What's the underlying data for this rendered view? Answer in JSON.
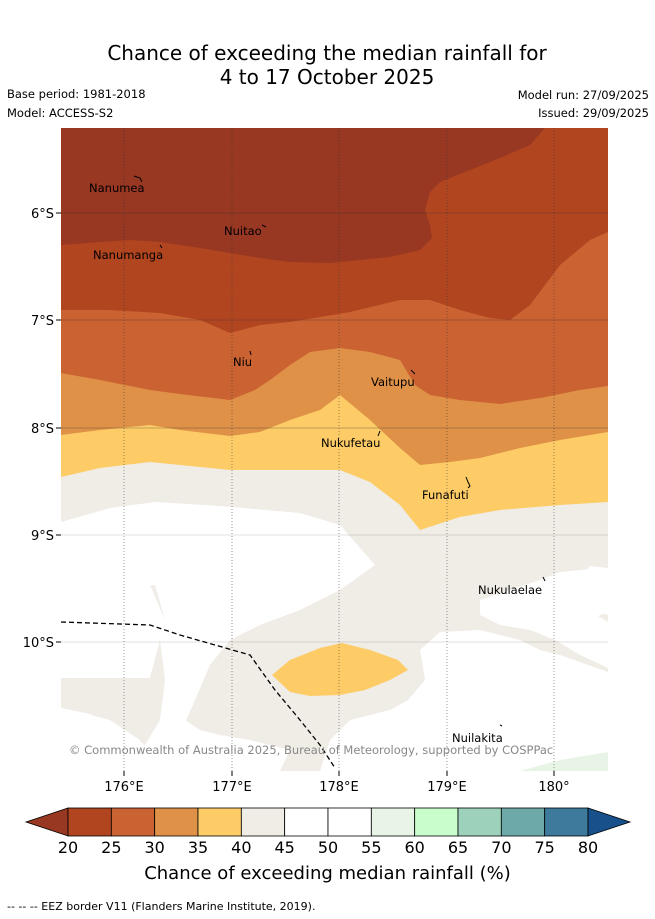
{
  "header": {
    "title_line1": "Chance of exceeding the median rainfall for",
    "title_line2": "4 to 17 October 2025",
    "base_period": "Base period: 1981-2018",
    "model": "Model: ACCESS-S2",
    "model_run": "Model run: 27/09/2025",
    "issued": "Issued: 29/09/2025"
  },
  "map": {
    "lon_ticks": [
      "176°E",
      "177°E",
      "178°E",
      "179°E",
      "180°"
    ],
    "lat_ticks": [
      "6°S",
      "7°S",
      "8°S",
      "9°S",
      "10°S"
    ],
    "places": {
      "nanumea": "Nanumea",
      "nuitao": "Nuitao",
      "nanumanga": "Nanumanga",
      "niu": "Niu",
      "vaitupu": "Vaitupu",
      "nukufetau": "Nukufetau",
      "funafuti": "Funafuti",
      "nukulaelae": "Nukulaelae",
      "nuilakita": "Nuilakita"
    },
    "copyright": "© Commonwealth of Australia 2025, Bureau of Meteorology, supported by COSPPac"
  },
  "colorbar": {
    "ticks": [
      "20",
      "25",
      "30",
      "35",
      "40",
      "45",
      "50",
      "55",
      "60",
      "65",
      "70",
      "75",
      "80"
    ],
    "colors": [
      "#b0451f",
      "#cb6232",
      "#de9147",
      "#fdcc66",
      "#f0ece6",
      "#ffffff",
      "#ffffff",
      "#e8f5e6",
      "#c9fdcb",
      "#9dd1bb",
      "#6da9a9",
      "#3d7a9c"
    ],
    "below_color": "#983722",
    "above_color": "#17508a",
    "title": "Chance of exceeding median rainfall (%)"
  },
  "footer": {
    "eez_legend": "--  --  -- EEZ border V11 (Flanders Marine Institute, 2019)."
  }
}
